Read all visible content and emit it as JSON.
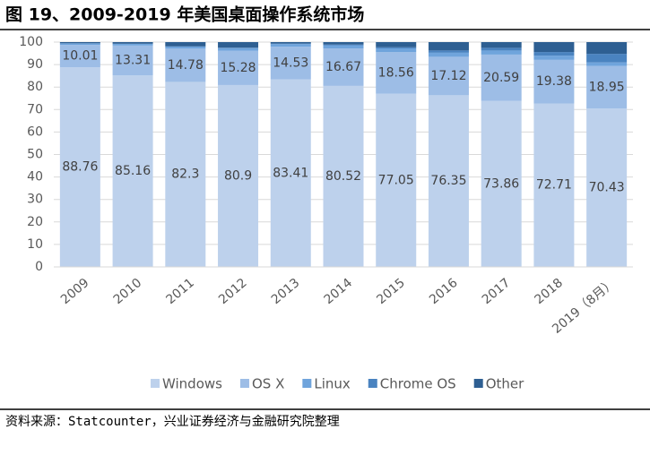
{
  "chart_data": {
    "type": "stacked_bar",
    "title": "图 19、2009-2019 年美国桌面操作系统市场",
    "source": "资料来源：Statcounter，兴业证券经济与金融研究院整理",
    "categories": [
      "2009",
      "2010",
      "2011",
      "2012",
      "2013",
      "2014",
      "2015",
      "2016",
      "2017",
      "2018",
      "2019（8月）"
    ],
    "series": [
      {
        "name": "Windows",
        "color": "#bdd1ec",
        "labels": true,
        "values": [
          88.76,
          85.16,
          82.3,
          80.9,
          83.41,
          80.52,
          77.05,
          76.35,
          73.86,
          72.71,
          70.43
        ]
      },
      {
        "name": "OS X",
        "color": "#9dbde6",
        "labels": true,
        "values": [
          10.01,
          13.31,
          14.78,
          15.28,
          14.53,
          16.67,
          18.56,
          17.12,
          20.59,
          19.38,
          18.95
        ]
      },
      {
        "name": "Linux",
        "color": "#6fa4dc",
        "labels": false,
        "values": [
          0.7,
          0.8,
          1.0,
          1.2,
          1.2,
          1.4,
          1.6,
          1.8,
          1.8,
          1.9,
          1.6
        ]
      },
      {
        "name": "Chrome OS",
        "color": "#4a83c0",
        "labels": false,
        "values": [
          0,
          0,
          0,
          0.1,
          0.2,
          0.3,
          0.5,
          1.0,
          1.2,
          1.6,
          3.8
        ]
      },
      {
        "name": "Other",
        "color": "#2e5f92",
        "labels": false,
        "values": [
          0.53,
          0.73,
          1.92,
          2.52,
          0.66,
          1.11,
          2.29,
          3.73,
          2.55,
          4.41,
          5.22
        ]
      }
    ],
    "ylim": [
      0,
      100
    ],
    "yticks": [
      0,
      10,
      20,
      30,
      40,
      50,
      60,
      70,
      80,
      90,
      100
    ],
    "grid": true
  }
}
